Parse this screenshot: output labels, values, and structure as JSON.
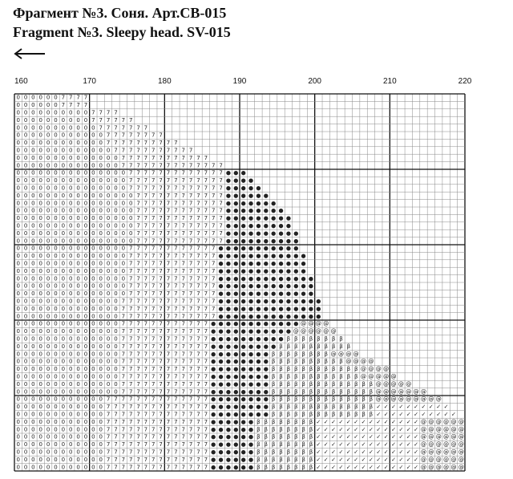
{
  "header": {
    "title_ru": "Фрагмент №3. Соня. Арт.СВ-015",
    "title_en": "Fragment №3. Sleepy head. SV-015"
  },
  "column_labels": [
    160,
    170,
    180,
    190,
    200,
    210,
    220
  ],
  "grid": {
    "rows": [
      [
        [
          "0",
          6
        ],
        [
          "7",
          4
        ]
      ],
      [
        [
          "0",
          6
        ],
        [
          "7",
          4
        ]
      ],
      [
        [
          "0",
          10
        ],
        [
          "7",
          4
        ]
      ],
      [
        [
          "0",
          10
        ],
        [
          "7",
          6
        ]
      ],
      [
        [
          "0",
          11
        ],
        [
          "7",
          7
        ]
      ],
      [
        [
          "0",
          12
        ],
        [
          "7",
          8
        ]
      ],
      [
        [
          "0",
          12
        ],
        [
          "7",
          10
        ]
      ],
      [
        [
          "0",
          13
        ],
        [
          "7",
          11
        ]
      ],
      [
        [
          "0",
          14
        ],
        [
          "7",
          12
        ]
      ],
      [
        [
          "0",
          14
        ],
        [
          "7",
          14
        ]
      ],
      [
        [
          "0",
          15
        ],
        [
          "7",
          13
        ],
        [
          "●",
          3
        ]
      ],
      [
        [
          "0",
          15
        ],
        [
          "7",
          13
        ],
        [
          "●",
          4
        ]
      ],
      [
        [
          "0",
          15
        ],
        [
          "7",
          13
        ],
        [
          "●",
          5
        ]
      ],
      [
        [
          "0",
          16
        ],
        [
          "7",
          12
        ],
        [
          "●",
          6
        ]
      ],
      [
        [
          "0",
          16
        ],
        [
          "7",
          12
        ],
        [
          "●",
          7
        ]
      ],
      [
        [
          "0",
          16
        ],
        [
          "7",
          12
        ],
        [
          "●",
          8
        ]
      ],
      [
        [
          "0",
          16
        ],
        [
          "7",
          12
        ],
        [
          "●",
          9
        ]
      ],
      [
        [
          "0",
          16
        ],
        [
          "7",
          12
        ],
        [
          "●",
          9
        ]
      ],
      [
        [
          "0",
          16
        ],
        [
          "7",
          12
        ],
        [
          "●",
          10
        ]
      ],
      [
        [
          "0",
          16
        ],
        [
          "7",
          12
        ],
        [
          "●",
          10
        ]
      ],
      [
        [
          "0",
          15
        ],
        [
          "7",
          12
        ],
        [
          "●",
          11
        ]
      ],
      [
        [
          "0",
          15
        ],
        [
          "7",
          12
        ],
        [
          "●",
          12
        ]
      ],
      [
        [
          "0",
          15
        ],
        [
          "7",
          12
        ],
        [
          "●",
          12
        ]
      ],
      [
        [
          "0",
          15
        ],
        [
          "7",
          12
        ],
        [
          "●",
          12
        ]
      ],
      [
        [
          "0",
          15
        ],
        [
          "7",
          12
        ],
        [
          "●",
          13
        ]
      ],
      [
        [
          "0",
          15
        ],
        [
          "7",
          12
        ],
        [
          "●",
          13
        ]
      ],
      [
        [
          "0",
          15
        ],
        [
          "7",
          12
        ],
        [
          "●",
          13
        ]
      ],
      [
        [
          "0",
          14
        ],
        [
          "7",
          13
        ],
        [
          "●",
          14
        ]
      ],
      [
        [
          "0",
          14
        ],
        [
          "7",
          13
        ],
        [
          "●",
          14
        ]
      ],
      [
        [
          "0",
          14
        ],
        [
          "7",
          13
        ],
        [
          "●",
          14
        ]
      ],
      [
        [
          "0",
          14
        ],
        [
          "7",
          12
        ],
        [
          "●",
          12
        ],
        [
          "@",
          4
        ]
      ],
      [
        [
          "0",
          14
        ],
        [
          "7",
          12
        ],
        [
          "●",
          11
        ],
        [
          "@",
          6
        ]
      ],
      [
        [
          "0",
          14
        ],
        [
          "7",
          12
        ],
        [
          "●",
          10
        ],
        [
          "β",
          8
        ]
      ],
      [
        [
          "0",
          14
        ],
        [
          "7",
          12
        ],
        [
          "●",
          9
        ],
        [
          "β",
          10
        ]
      ],
      [
        [
          "0",
          14
        ],
        [
          "7",
          12
        ],
        [
          "●",
          8
        ],
        [
          "β",
          8
        ],
        [
          "@",
          4
        ]
      ],
      [
        [
          "0",
          14
        ],
        [
          "7",
          12
        ],
        [
          "●",
          8
        ],
        [
          "β",
          10
        ],
        [
          "@",
          4
        ]
      ],
      [
        [
          "0",
          14
        ],
        [
          "7",
          12
        ],
        [
          "●",
          8
        ],
        [
          "β",
          12
        ],
        [
          "@",
          4
        ]
      ],
      [
        [
          "0",
          14
        ],
        [
          "7",
          12
        ],
        [
          "●",
          8
        ],
        [
          "β",
          12
        ],
        [
          "@",
          5
        ]
      ],
      [
        [
          "0",
          14
        ],
        [
          "7",
          12
        ],
        [
          "●",
          8
        ],
        [
          "β",
          14
        ],
        [
          "@",
          5
        ]
      ],
      [
        [
          "0",
          14
        ],
        [
          "7",
          12
        ],
        [
          "●",
          8
        ],
        [
          "β",
          14
        ],
        [
          "@",
          7
        ]
      ],
      [
        [
          "0",
          12
        ],
        [
          "7",
          14
        ],
        [
          "●",
          8
        ],
        [
          "β",
          14
        ],
        [
          "@",
          9
        ]
      ],
      [
        [
          "0",
          12
        ],
        [
          "7",
          14
        ],
        [
          "●",
          8
        ],
        [
          "β",
          14
        ],
        [
          "✓",
          10
        ]
      ],
      [
        [
          "0",
          12
        ],
        [
          "7",
          14
        ],
        [
          "●",
          8
        ],
        [
          "β",
          14
        ],
        [
          "✓",
          11
        ]
      ],
      [
        [
          "0",
          12
        ],
        [
          "7",
          14
        ],
        [
          "●",
          6
        ],
        [
          "β",
          8
        ],
        [
          "✓",
          14
        ],
        [
          "@",
          6
        ]
      ],
      [
        [
          "0",
          12
        ],
        [
          "7",
          14
        ],
        [
          "●",
          6
        ],
        [
          "β",
          8
        ],
        [
          "✓",
          14
        ],
        [
          "@",
          6
        ]
      ],
      [
        [
          "0",
          12
        ],
        [
          "7",
          14
        ],
        [
          "●",
          6
        ],
        [
          "β",
          8
        ],
        [
          "✓",
          14
        ],
        [
          "@",
          6
        ]
      ],
      [
        [
          "0",
          12
        ],
        [
          "7",
          14
        ],
        [
          "●",
          6
        ],
        [
          "β",
          8
        ],
        [
          "✓",
          14
        ],
        [
          "@",
          6
        ]
      ],
      [
        [
          "0",
          12
        ],
        [
          "7",
          14
        ],
        [
          "●",
          6
        ],
        [
          "β",
          8
        ],
        [
          "✓",
          14
        ],
        [
          "@",
          6
        ]
      ],
      [
        [
          "0",
          12
        ],
        [
          "7",
          14
        ],
        [
          "●",
          6
        ],
        [
          "β",
          8
        ],
        [
          "✓",
          14
        ],
        [
          "@",
          6
        ]
      ],
      [
        [
          "0",
          12
        ],
        [
          "7",
          14
        ],
        [
          "●",
          6
        ],
        [
          "β",
          8
        ],
        [
          "✓",
          14
        ],
        [
          "@",
          6
        ]
      ]
    ]
  }
}
